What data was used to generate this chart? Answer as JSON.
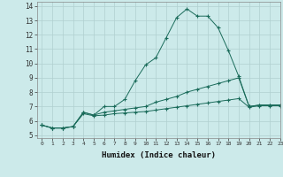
{
  "xlabel": "Humidex (Indice chaleur)",
  "xlim": [
    -0.5,
    23
  ],
  "ylim": [
    4.8,
    14.3
  ],
  "yticks": [
    5,
    6,
    7,
    8,
    9,
    10,
    11,
    12,
    13,
    14
  ],
  "xticks": [
    0,
    1,
    2,
    3,
    4,
    5,
    6,
    7,
    8,
    9,
    10,
    11,
    12,
    13,
    14,
    15,
    16,
    17,
    18,
    19,
    20,
    21,
    22,
    23
  ],
  "background_color": "#cceaea",
  "grid_color": "#b0d0d0",
  "line_color": "#1a6b5a",
  "lines": [
    {
      "x": [
        0,
        1,
        2,
        3,
        4,
        5,
        6,
        7,
        8,
        9,
        10,
        11,
        12,
        13,
        14,
        15,
        16,
        17,
        18,
        19,
        20,
        21,
        22,
        23
      ],
      "y": [
        5.7,
        5.5,
        5.5,
        5.6,
        6.6,
        6.4,
        7.0,
        7.0,
        7.5,
        8.8,
        9.9,
        10.4,
        11.8,
        13.2,
        13.8,
        13.3,
        13.3,
        12.5,
        10.9,
        9.1,
        7.0,
        7.1,
        7.1,
        7.1
      ]
    },
    {
      "x": [
        0,
        1,
        2,
        3,
        4,
        5,
        6,
        7,
        8,
        9,
        10,
        11,
        12,
        13,
        14,
        15,
        16,
        17,
        18,
        19,
        20,
        21,
        22,
        23
      ],
      "y": [
        5.7,
        5.5,
        5.5,
        5.6,
        6.6,
        6.4,
        6.6,
        6.7,
        6.8,
        6.9,
        7.0,
        7.3,
        7.5,
        7.7,
        8.0,
        8.2,
        8.4,
        8.6,
        8.8,
        9.0,
        7.0,
        7.1,
        7.1,
        7.1
      ]
    },
    {
      "x": [
        0,
        1,
        2,
        3,
        4,
        5,
        6,
        7,
        8,
        9,
        10,
        11,
        12,
        13,
        14,
        15,
        16,
        17,
        18,
        19,
        20,
        21,
        22,
        23
      ],
      "y": [
        5.7,
        5.5,
        5.5,
        5.6,
        6.5,
        6.35,
        6.4,
        6.5,
        6.55,
        6.6,
        6.65,
        6.75,
        6.85,
        6.95,
        7.05,
        7.15,
        7.25,
        7.35,
        7.45,
        7.55,
        6.95,
        7.05,
        7.05,
        7.05
      ]
    }
  ]
}
